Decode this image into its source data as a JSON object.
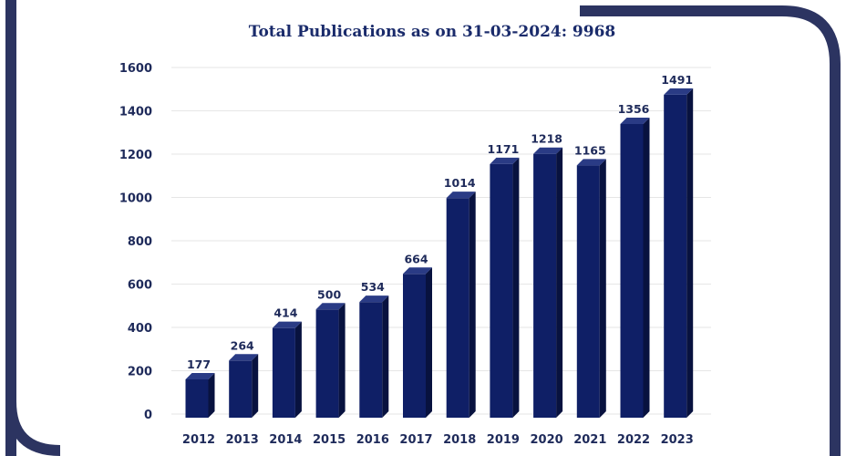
{
  "chart_data": {
    "type": "bar",
    "title": "Total Publications as on 31-03-2024: 9968",
    "xlabel": "",
    "ylabel": "",
    "categories": [
      "2012",
      "2013",
      "2014",
      "2015",
      "2016",
      "2017",
      "2018",
      "2019",
      "2020",
      "2021",
      "2022",
      "2023"
    ],
    "values": [
      177,
      264,
      414,
      500,
      534,
      664,
      1014,
      1171,
      1218,
      1165,
      1356,
      1491
    ],
    "ylim": [
      0,
      1600
    ],
    "yticks": [
      0,
      200,
      400,
      600,
      800,
      1000,
      1200,
      1400,
      1600
    ],
    "grid": true,
    "data_labels": true
  },
  "colors": {
    "bar_front": "#0f1f66",
    "bar_side": "#08123f",
    "bar_top": "#2a3b85",
    "frame": "#2c3461"
  }
}
